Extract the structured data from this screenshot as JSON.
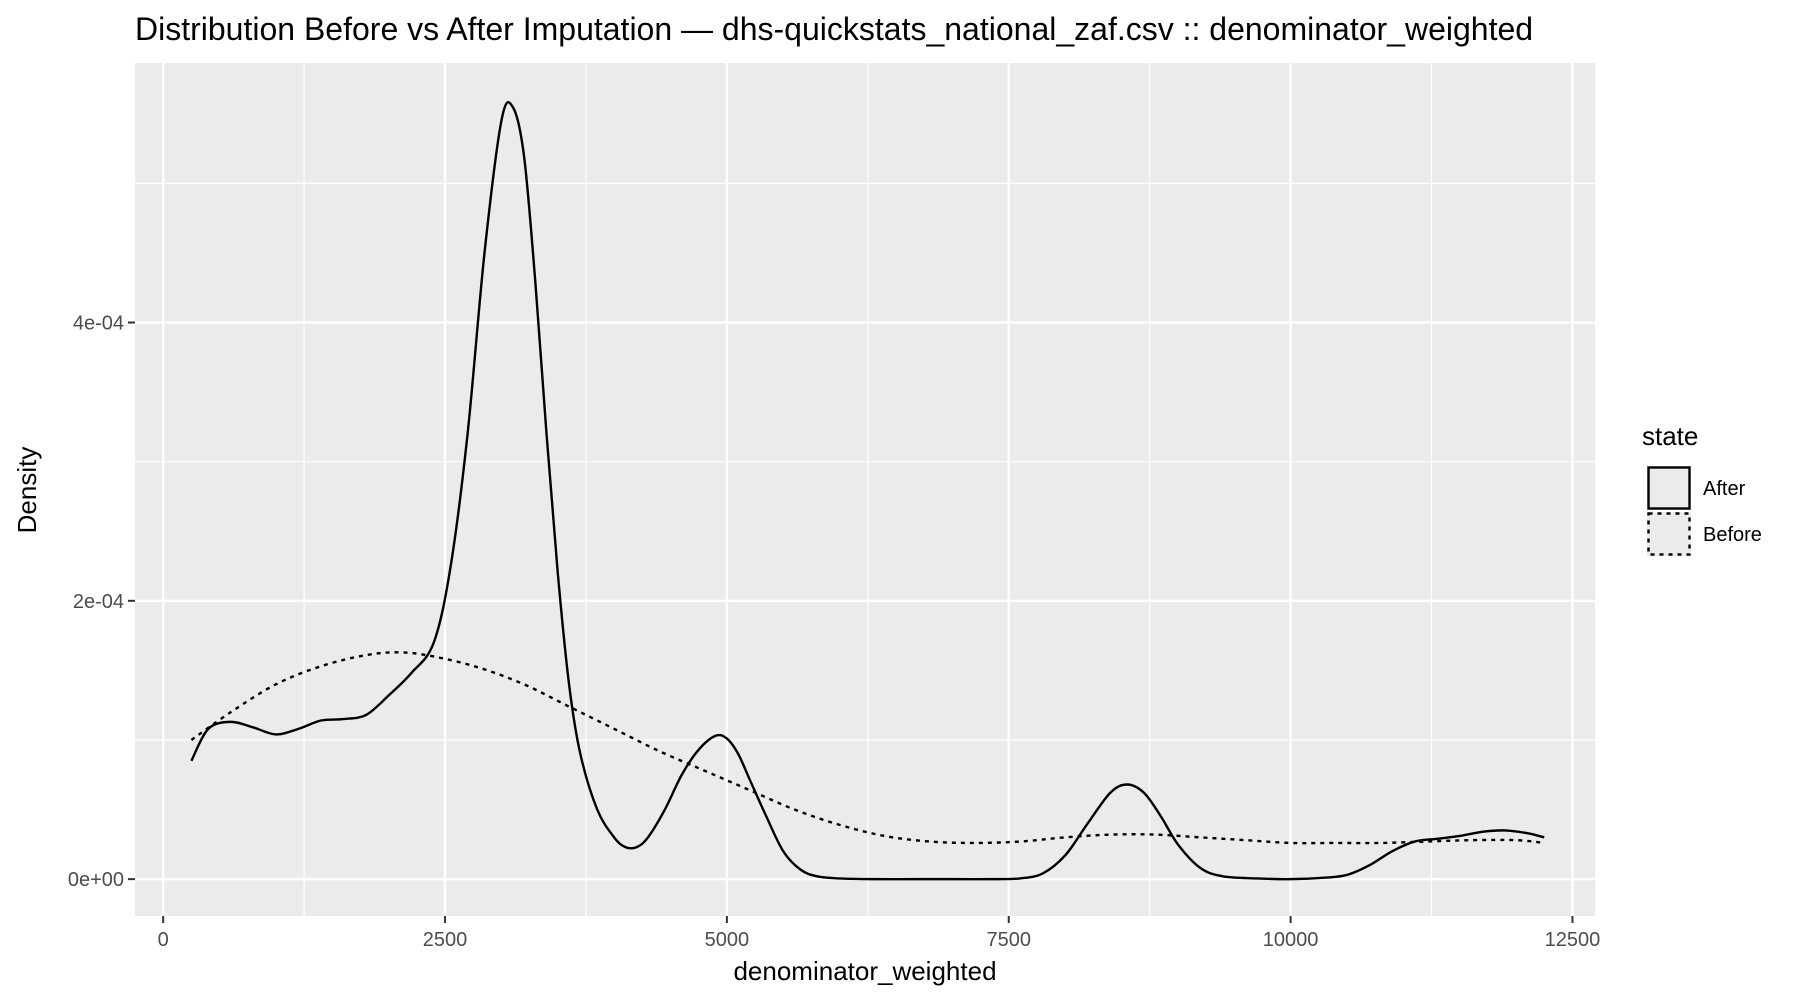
{
  "chart_data": {
    "type": "line",
    "title": "Distribution Before vs After Imputation — dhs-quickstats_national_zaf.csv :: denominator_weighted",
    "xlabel": "denominator_weighted",
    "ylabel": "Density",
    "xlim": [
      -250,
      12700
    ],
    "ylim": [
      -2.65e-05,
      0.0005865
    ],
    "x_ticks": [
      0,
      2500,
      5000,
      7500,
      10000,
      12500
    ],
    "x_tick_labels": [
      "0",
      "2500",
      "5000",
      "7500",
      "10000",
      "12500"
    ],
    "y_ticks": [
      0,
      0.0002,
      0.0004
    ],
    "y_tick_labels": [
      "0e+00",
      "2e-04",
      "4e-04"
    ],
    "grid": true,
    "legend": {
      "title": "state",
      "placement": "right",
      "entries": [
        {
          "label": "After",
          "linetype": "solid"
        },
        {
          "label": "Before",
          "linetype": "dotted"
        }
      ]
    },
    "colors": {
      "panel_background": "#ebebeb",
      "grid": "#ffffff",
      "line": "#000000"
    },
    "series": [
      {
        "name": "After",
        "linetype": "solid",
        "x": [
          250,
          400,
          600,
          800,
          1000,
          1200,
          1400,
          1600,
          1800,
          2000,
          2200,
          2400,
          2550,
          2700,
          2850,
          3000,
          3100,
          3200,
          3300,
          3400,
          3500,
          3600,
          3700,
          3850,
          4000,
          4100,
          4200,
          4300,
          4450,
          4600,
          4750,
          4900,
          5000,
          5100,
          5200,
          5350,
          5500,
          5650,
          5800,
          6000,
          6300,
          6700,
          7000,
          7400,
          7600,
          7800,
          8000,
          8200,
          8400,
          8550,
          8700,
          8850,
          9000,
          9200,
          9400,
          9700,
          10000,
          10300,
          10500,
          10700,
          10900,
          11100,
          11300,
          11500,
          11700,
          11900,
          12100,
          12250
        ],
        "y": [
          8.5e-05,
          0.000108,
          0.000113,
          0.000109,
          0.000104,
          0.000108,
          0.000114,
          0.000115,
          0.000118,
          0.000132,
          0.000148,
          0.00017,
          0.000225,
          0.00032,
          0.00045,
          0.000545,
          0.000555,
          0.00052,
          0.00043,
          0.00032,
          0.00022,
          0.00014,
          9e-05,
          5e-05,
          3e-05,
          2.3e-05,
          2.3e-05,
          3e-05,
          5e-05,
          7.5e-05,
          9.3e-05,
          0.000103,
          0.000101,
          9e-05,
          7.2e-05,
          4.5e-05,
          2e-05,
          7e-06,
          2e-06,
          5e-07,
          0,
          0,
          0,
          0,
          5e-07,
          4e-06,
          1.7e-05,
          4e-05,
          6.2e-05,
          6.8e-05,
          6.2e-05,
          4.5e-05,
          2.5e-05,
          8e-06,
          2e-06,
          5e-07,
          0,
          1e-06,
          3e-06,
          1e-05,
          2e-05,
          2.7e-05,
          2.9e-05,
          3.1e-05,
          3.4e-05,
          3.5e-05,
          3.3e-05,
          3e-05
        ]
      },
      {
        "name": "Before",
        "linetype": "dotted",
        "x": [
          250,
          600,
          1000,
          1400,
          1800,
          2100,
          2400,
          2800,
          3200,
          3600,
          4000,
          4400,
          4800,
          5200,
          5600,
          6000,
          6400,
          6800,
          7200,
          7600,
          8000,
          8400,
          8800,
          9200,
          9600,
          10000,
          10400,
          10800,
          11200,
          11600,
          12000,
          12250
        ],
        "y": [
          0.0001,
          0.00012,
          0.00014,
          0.000153,
          0.000161,
          0.000163,
          0.00016,
          0.000152,
          0.00014,
          0.000124,
          0.000108,
          9.2e-05,
          7.8e-05,
          6.4e-05,
          5e-05,
          3.9e-05,
          3.1e-05,
          2.7e-05,
          2.6e-05,
          2.7e-05,
          3e-05,
          3.2e-05,
          3.2e-05,
          3e-05,
          2.8e-05,
          2.6e-05,
          2.6e-05,
          2.6e-05,
          2.7e-05,
          2.8e-05,
          2.8e-05,
          2.6e-05
        ]
      }
    ]
  }
}
